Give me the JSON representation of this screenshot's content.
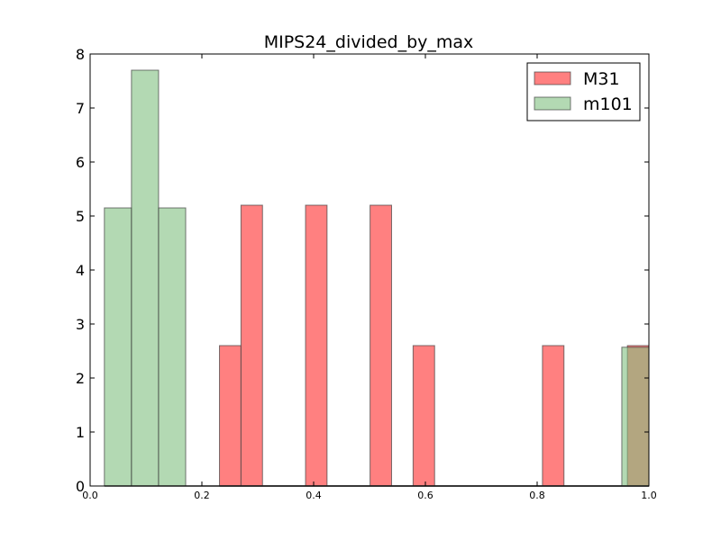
{
  "chart_data": {
    "type": "bar",
    "title": "MIPS24_divided_by_max",
    "xlabel": "",
    "ylabel": "",
    "xlim": [
      0.0,
      1.0
    ],
    "ylim": [
      0,
      8
    ],
    "x_ticks": [
      0.0,
      0.2,
      0.4,
      0.6,
      0.8,
      1.0
    ],
    "x_tick_labels": [
      "0.0",
      "0.2",
      "0.4",
      "0.6",
      "0.8",
      "1.0"
    ],
    "y_ticks": [
      0,
      1,
      2,
      3,
      4,
      5,
      6,
      7,
      8
    ],
    "y_tick_labels": [
      "0",
      "1",
      "2",
      "3",
      "4",
      "5",
      "6",
      "7",
      "8"
    ],
    "grid": false,
    "legend_position": "top-right",
    "series": [
      {
        "name": "M31",
        "color": "#ff8080",
        "bins": [
          {
            "x0": 0.2315,
            "x1": 0.27,
            "value": 2.6
          },
          {
            "x0": 0.27,
            "x1": 0.3085,
            "value": 5.2
          },
          {
            "x0": 0.3855,
            "x1": 0.424,
            "value": 5.2
          },
          {
            "x0": 0.501,
            "x1": 0.5395,
            "value": 5.2
          },
          {
            "x0": 0.578,
            "x1": 0.6165,
            "value": 2.6
          },
          {
            "x0": 0.8095,
            "x1": 0.848,
            "value": 2.6
          },
          {
            "x0": 0.9615,
            "x1": 1.0,
            "value": 2.6
          }
        ]
      },
      {
        "name": "m101",
        "color": "#80c080",
        "bins": [
          {
            "x0": 0.0255,
            "x1": 0.074,
            "value": 5.15
          },
          {
            "x0": 0.074,
            "x1": 0.1225,
            "value": 7.7
          },
          {
            "x0": 0.1225,
            "x1": 0.171,
            "value": 5.15
          },
          {
            "x0": 0.9515,
            "x1": 1.0,
            "value": 2.57
          }
        ]
      }
    ]
  }
}
